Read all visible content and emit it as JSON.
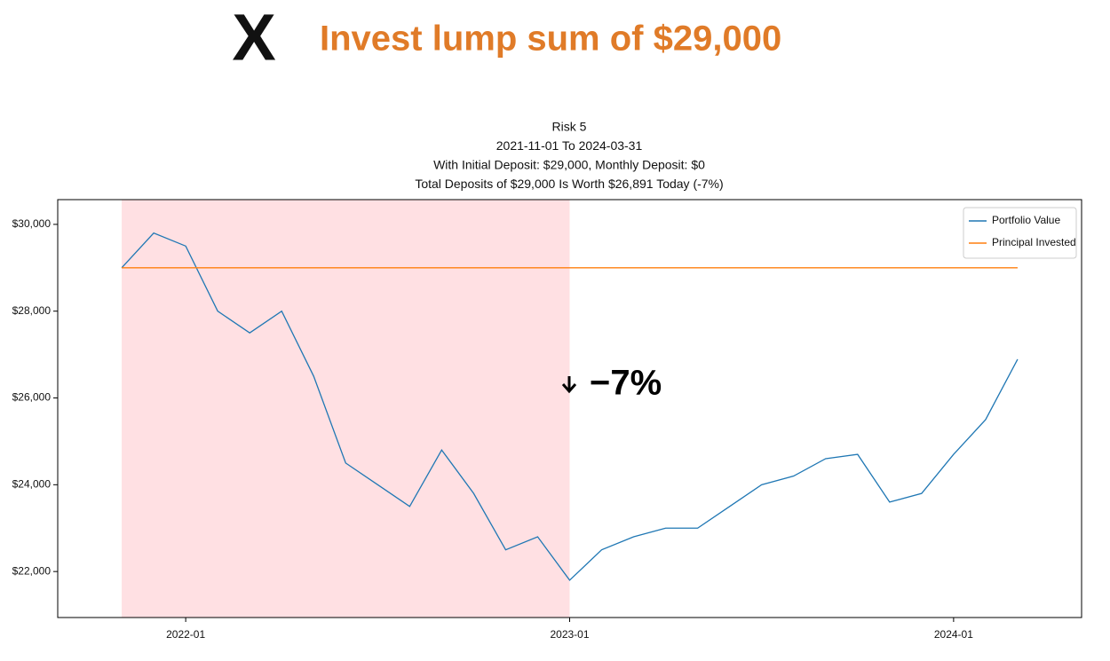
{
  "header": {
    "mark": "X",
    "title": "Invest lump sum of $29,000"
  },
  "chart_data": {
    "type": "line",
    "title": [
      "Risk 5",
      "2021-11-01 To 2024-03-31",
      "With Initial Deposit: $29,000, Monthly Deposit: $0",
      "Total Deposits of $29,000 Is Worth $26,891 Today (-7%)"
    ],
    "annotation": "−7%",
    "x": [
      "2021-11",
      "2021-12",
      "2022-01",
      "2022-02",
      "2022-03",
      "2022-04",
      "2022-05",
      "2022-06",
      "2022-07",
      "2022-08",
      "2022-09",
      "2022-10",
      "2022-11",
      "2022-12",
      "2023-01",
      "2023-02",
      "2023-03",
      "2023-04",
      "2023-05",
      "2023-06",
      "2023-07",
      "2023-08",
      "2023-09",
      "2023-10",
      "2023-11",
      "2023-12",
      "2024-01",
      "2024-02",
      "2024-03"
    ],
    "series": [
      {
        "name": "Portfolio Value",
        "color": "#1f77b4",
        "values": [
          29000,
          29800,
          29500,
          28000,
          27500,
          28000,
          26500,
          24500,
          24000,
          23500,
          24800,
          23800,
          22500,
          22800,
          21800,
          22500,
          22800,
          23000,
          23000,
          23500,
          24000,
          24200,
          24600,
          24700,
          23600,
          23800,
          24700,
          25500,
          26891
        ]
      },
      {
        "name": "Principal Invested",
        "color": "#ff7f0e",
        "values": [
          29000,
          29000,
          29000,
          29000,
          29000,
          29000,
          29000,
          29000,
          29000,
          29000,
          29000,
          29000,
          29000,
          29000,
          29000,
          29000,
          29000,
          29000,
          29000,
          29000,
          29000,
          29000,
          29000,
          29000,
          29000,
          29000,
          29000,
          29000,
          29000
        ]
      }
    ],
    "highlight": {
      "from": "2021-11",
      "to": "2023-01",
      "color": "#ffe0e3"
    },
    "xlim": [
      "2021-09",
      "2024-05"
    ],
    "xticks": [
      "2022-01",
      "2023-01",
      "2024-01"
    ],
    "ylim": [
      20940,
      30570
    ],
    "yticks": [
      {
        "value": 22000,
        "label": "$22,000"
      },
      {
        "value": 24000,
        "label": "$24,000"
      },
      {
        "value": 26000,
        "label": "$26,000"
      },
      {
        "value": 28000,
        "label": "$28,000"
      },
      {
        "value": 30000,
        "label": "$30,000"
      }
    ],
    "legend": "upper right"
  }
}
